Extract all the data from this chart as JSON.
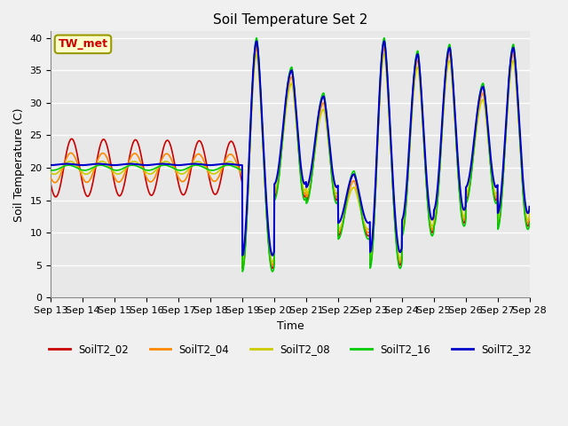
{
  "title": "Soil Temperature Set 2",
  "xlabel": "Time",
  "ylabel": "Soil Temperature (C)",
  "ylim": [
    0,
    41
  ],
  "yticks": [
    0,
    5,
    10,
    15,
    20,
    25,
    30,
    35,
    40
  ],
  "xtick_labels": [
    "Sep 13",
    "Sep 14",
    "Sep 15",
    "Sep 16",
    "Sep 17",
    "Sep 18",
    "Sep 19",
    "Sep 20",
    "Sep 21",
    "Sep 22",
    "Sep 23",
    "Sep 24",
    "Sep 25",
    "Sep 26",
    "Sep 27",
    "Sep 28"
  ],
  "colors": {
    "SoilT2_02": "#cc0000",
    "SoilT2_04": "#ff8800",
    "SoilT2_08": "#cccc00",
    "SoilT2_16": "#00cc00",
    "SoilT2_32": "#0000cc"
  },
  "annotation_text": "TW_met",
  "annotation_color": "#cc0000",
  "annotation_bg": "#ffffcc",
  "annotation_border": "#999900",
  "plot_bg": "#e8e8e8",
  "fig_bg": "#f0f0f0",
  "grid_color": "#ffffff"
}
